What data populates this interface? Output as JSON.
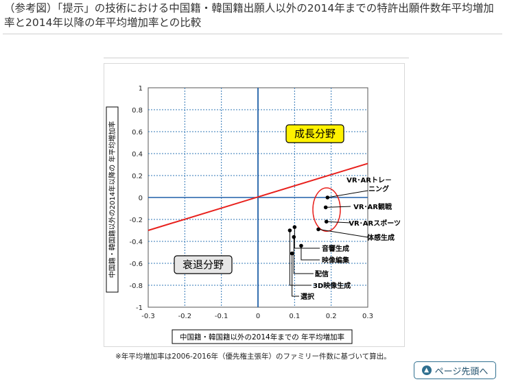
{
  "page": {
    "title": "（参考図）「提示」の技術における中国籍・韓国籍出願人以外の2014年までの特許出願件数年平均増加率と2014年以降の年平均増加率との比較",
    "footnote": "※年平均増加率は2006-2016年（優先権主張年）のファミリー件数に基づいて算出。",
    "page_top_button": "ページ先頭へ",
    "page_top_icon": "arrow-up-icon"
  },
  "chart_data": {
    "type": "scatter",
    "xlabel": "中国籍・韓国籍以外の2014年までの 年平均増加率",
    "ylabel": "中国籍・韓国籍以外の2014年以降の 年平均増加率",
    "xlim": [
      -0.3,
      0.3
    ],
    "ylim": [
      -1,
      1
    ],
    "x_ticks": [
      "-0.3",
      "-0.2",
      "-0.1",
      "0",
      "0.1",
      "0.2",
      "0.3"
    ],
    "y_ticks": [
      "1",
      "0.8",
      "0.6",
      "0.4",
      "0.2",
      "0",
      "-0.2",
      "-0.4",
      "-0.6",
      "-0.8",
      "-1"
    ],
    "grid": true,
    "reference_line": {
      "x": [
        -0.3,
        0.3
      ],
      "y": [
        -0.3,
        0.31
      ],
      "color": "#e8201c"
    },
    "points": [
      {
        "label": "VR･ARトレーニング",
        "x": 0.19,
        "y": 0.0
      },
      {
        "label": "VR･AR観戦",
        "x": 0.185,
        "y": -0.09
      },
      {
        "label": "VR･ARスポーツ",
        "x": 0.187,
        "y": -0.22
      },
      {
        "label": "体感生成",
        "x": 0.165,
        "y": -0.29
      },
      {
        "label": "音響生成",
        "x": 0.1,
        "y": -0.27
      },
      {
        "label": "映像編集",
        "x": 0.118,
        "y": -0.44
      },
      {
        "label": "配信",
        "x": 0.098,
        "y": -0.36
      },
      {
        "label": "3D映像生成",
        "x": 0.087,
        "y": -0.3
      },
      {
        "label": "選択",
        "x": 0.093,
        "y": -0.51
      }
    ],
    "highlight_group": [
      "VR･ARトレーニング",
      "VR･AR観戦",
      "VR･ARスポーツ"
    ],
    "highlight_color": "#e8201c",
    "annotations": [
      {
        "text": "成長分野",
        "color": "#fff200"
      },
      {
        "text": "衰退分野",
        "color": "#e6e6e6"
      }
    ],
    "colors": {
      "grid": "#2e75b6",
      "axis": "#1f5fa8",
      "point": "#000000"
    }
  }
}
